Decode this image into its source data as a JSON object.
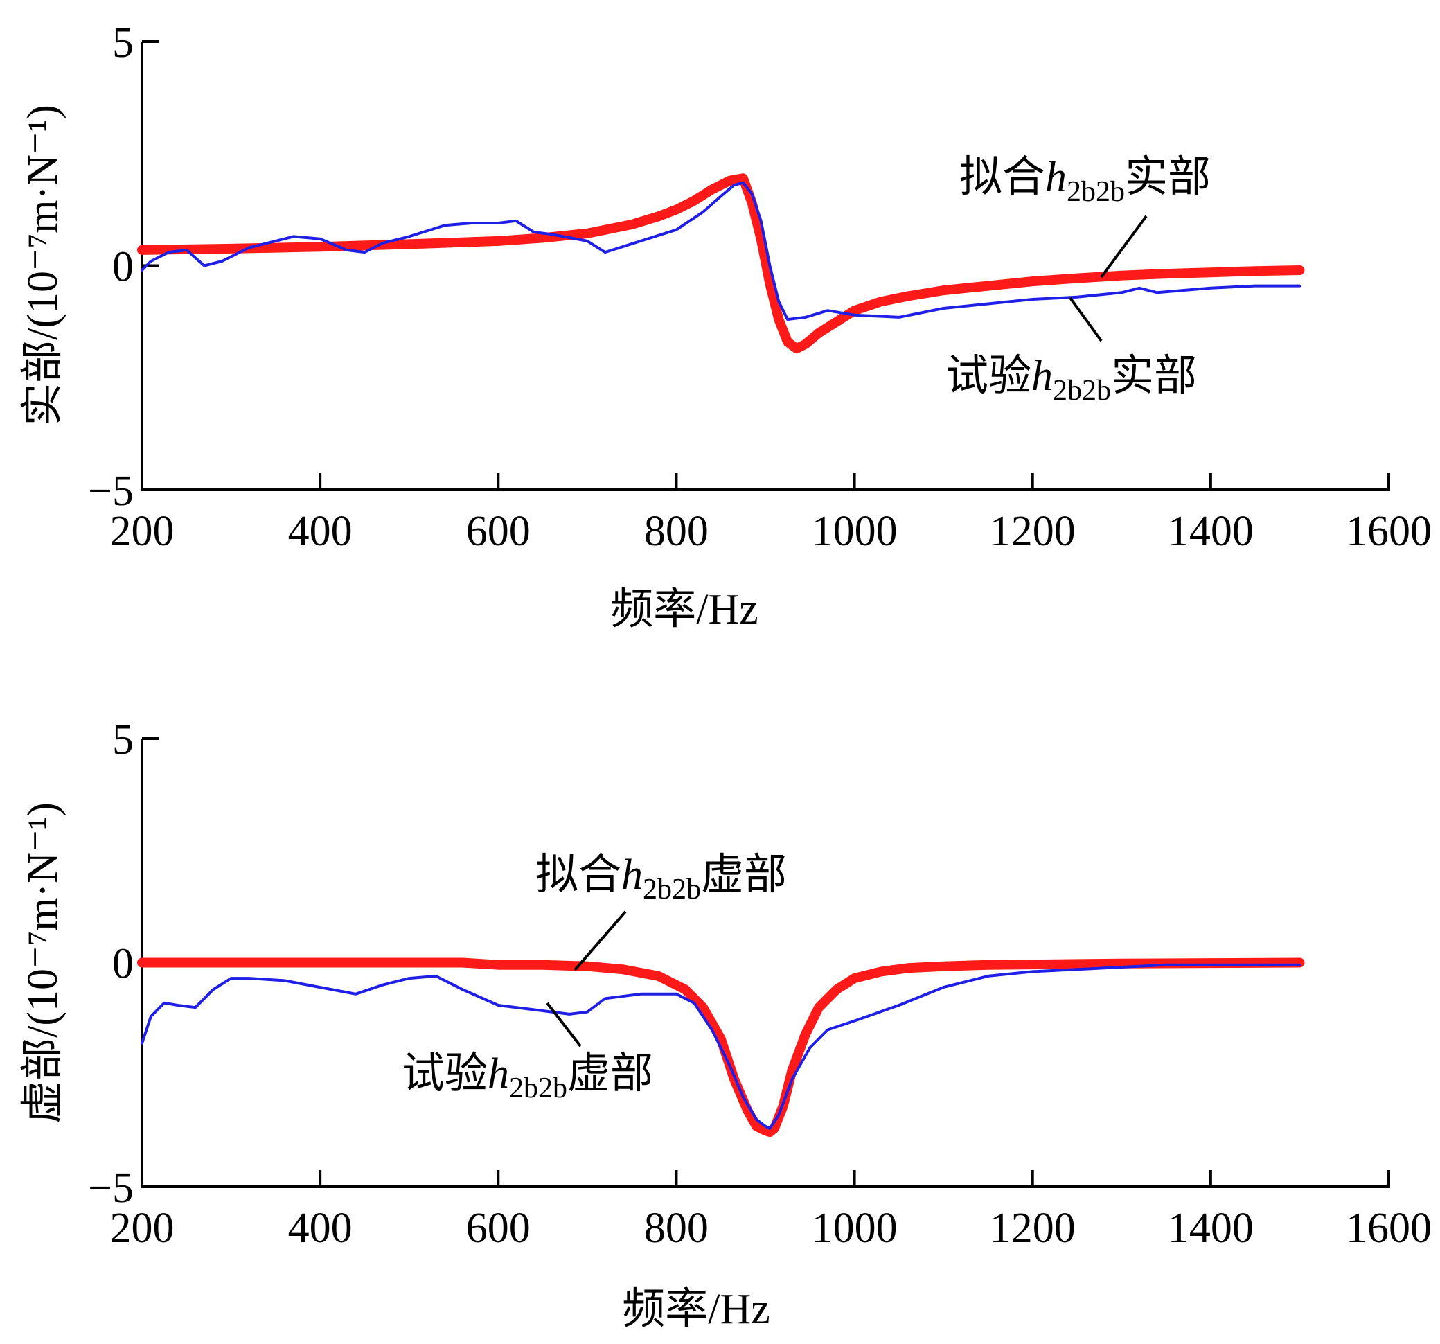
{
  "colors": {
    "fit": "#ff1a1a",
    "test": "#1f1fe6",
    "axes": "#000000"
  },
  "chart_data": [
    {
      "type": "line",
      "xlabel": "频率/Hz",
      "ylabel": "实部/(10⁻⁷m·N⁻¹)",
      "xlim": [
        200,
        1600
      ],
      "ylim": [
        -5,
        5
      ],
      "xticks": [
        "200",
        "400",
        "600",
        "800",
        "1000",
        "1200",
        "1400",
        "1600"
      ],
      "yticks": [
        "5",
        "0",
        "−5"
      ],
      "series": [
        {
          "name": "拟合h2b2b实部",
          "x": [
            200,
            300,
            400,
            500,
            600,
            650,
            700,
            750,
            780,
            800,
            820,
            840,
            860,
            875,
            885,
            895,
            905,
            915,
            925,
            935,
            945,
            960,
            980,
            1000,
            1030,
            1060,
            1100,
            1150,
            1200,
            1250,
            1300,
            1350,
            1400,
            1450,
            1500
          ],
          "y": [
            0.35,
            0.38,
            0.42,
            0.48,
            0.55,
            0.62,
            0.72,
            0.92,
            1.1,
            1.25,
            1.45,
            1.7,
            1.9,
            1.95,
            1.4,
            0.6,
            -0.4,
            -1.2,
            -1.7,
            -1.85,
            -1.75,
            -1.5,
            -1.25,
            -1.0,
            -0.8,
            -0.68,
            -0.55,
            -0.45,
            -0.35,
            -0.28,
            -0.22,
            -0.18,
            -0.15,
            -0.12,
            -0.1
          ]
        },
        {
          "name": "试验h2b2b实部",
          "x": [
            200,
            210,
            230,
            250,
            270,
            290,
            320,
            350,
            370,
            400,
            430,
            450,
            470,
            500,
            540,
            570,
            600,
            620,
            640,
            660,
            700,
            720,
            760,
            800,
            830,
            850,
            865,
            875,
            885,
            895,
            905,
            915,
            925,
            945,
            970,
            1000,
            1050,
            1100,
            1150,
            1200,
            1250,
            1300,
            1320,
            1340,
            1400,
            1450,
            1500
          ],
          "y": [
            -0.1,
            0.1,
            0.3,
            0.35,
            0.0,
            0.1,
            0.4,
            0.55,
            0.65,
            0.6,
            0.35,
            0.3,
            0.5,
            0.65,
            0.9,
            0.95,
            0.95,
            1.0,
            0.75,
            0.7,
            0.55,
            0.3,
            0.55,
            0.8,
            1.2,
            1.55,
            1.8,
            1.85,
            1.6,
            1.0,
            0.0,
            -0.8,
            -1.2,
            -1.15,
            -1.0,
            -1.1,
            -1.15,
            -0.95,
            -0.85,
            -0.75,
            -0.7,
            -0.6,
            -0.5,
            -0.6,
            -0.5,
            -0.45,
            -0.45
          ]
        }
      ],
      "annotations": [
        {
          "prefix": "拟合",
          "var": "h",
          "sub": "2b2b",
          "suffix": "实部"
        },
        {
          "prefix": "试验",
          "var": "h",
          "sub": "2b2b",
          "suffix": "实部"
        }
      ]
    },
    {
      "type": "line",
      "xlabel": "频率/Hz",
      "ylabel": "虚部/(10⁻⁷m·N⁻¹)",
      "xlim": [
        200,
        1600
      ],
      "ylim": [
        -5,
        5
      ],
      "xticks": [
        "200",
        "400",
        "600",
        "800",
        "1000",
        "1200",
        "1400",
        "1600"
      ],
      "yticks": [
        "5",
        "0",
        "−5"
      ],
      "series": [
        {
          "name": "拟合h2b2b虚部",
          "x": [
            200,
            300,
            400,
            500,
            560,
            600,
            650,
            700,
            740,
            780,
            810,
            830,
            850,
            865,
            880,
            890,
            900,
            905,
            910,
            920,
            930,
            945,
            960,
            980,
            1000,
            1030,
            1060,
            1100,
            1150,
            1200,
            1250,
            1300,
            1400,
            1500
          ],
          "y": [
            0.0,
            0.0,
            0.0,
            0.0,
            0.0,
            -0.05,
            -0.05,
            -0.08,
            -0.15,
            -0.3,
            -0.6,
            -1.0,
            -1.7,
            -2.6,
            -3.3,
            -3.65,
            -3.75,
            -3.78,
            -3.7,
            -3.2,
            -2.4,
            -1.6,
            -1.0,
            -0.6,
            -0.35,
            -0.2,
            -0.12,
            -0.08,
            -0.05,
            -0.04,
            -0.03,
            -0.02,
            -0.01,
            0.0
          ]
        },
        {
          "name": "试验h2b2b虚部",
          "x": [
            200,
            210,
            225,
            240,
            260,
            280,
            300,
            320,
            360,
            400,
            440,
            470,
            500,
            530,
            560,
            600,
            640,
            680,
            700,
            720,
            760,
            800,
            820,
            840,
            860,
            875,
            890,
            900,
            905,
            915,
            930,
            950,
            970,
            1000,
            1050,
            1100,
            1150,
            1200,
            1250,
            1300,
            1350,
            1400,
            1450,
            1500
          ],
          "y": [
            -1.8,
            -1.2,
            -0.9,
            -0.95,
            -1.0,
            -0.6,
            -0.35,
            -0.35,
            -0.4,
            -0.55,
            -0.7,
            -0.5,
            -0.35,
            -0.3,
            -0.6,
            -0.95,
            -1.05,
            -1.15,
            -1.1,
            -0.8,
            -0.7,
            -0.7,
            -0.9,
            -1.5,
            -2.3,
            -3.0,
            -3.5,
            -3.65,
            -3.7,
            -3.4,
            -2.6,
            -1.9,
            -1.5,
            -1.3,
            -0.95,
            -0.55,
            -0.3,
            -0.2,
            -0.15,
            -0.1,
            -0.05,
            -0.05,
            -0.05,
            -0.05
          ]
        }
      ],
      "annotations": [
        {
          "prefix": "拟合",
          "var": "h",
          "sub": "2b2b",
          "suffix": "虚部"
        },
        {
          "prefix": "试验",
          "var": "h",
          "sub": "2b2b",
          "suffix": "虚部"
        }
      ]
    }
  ]
}
